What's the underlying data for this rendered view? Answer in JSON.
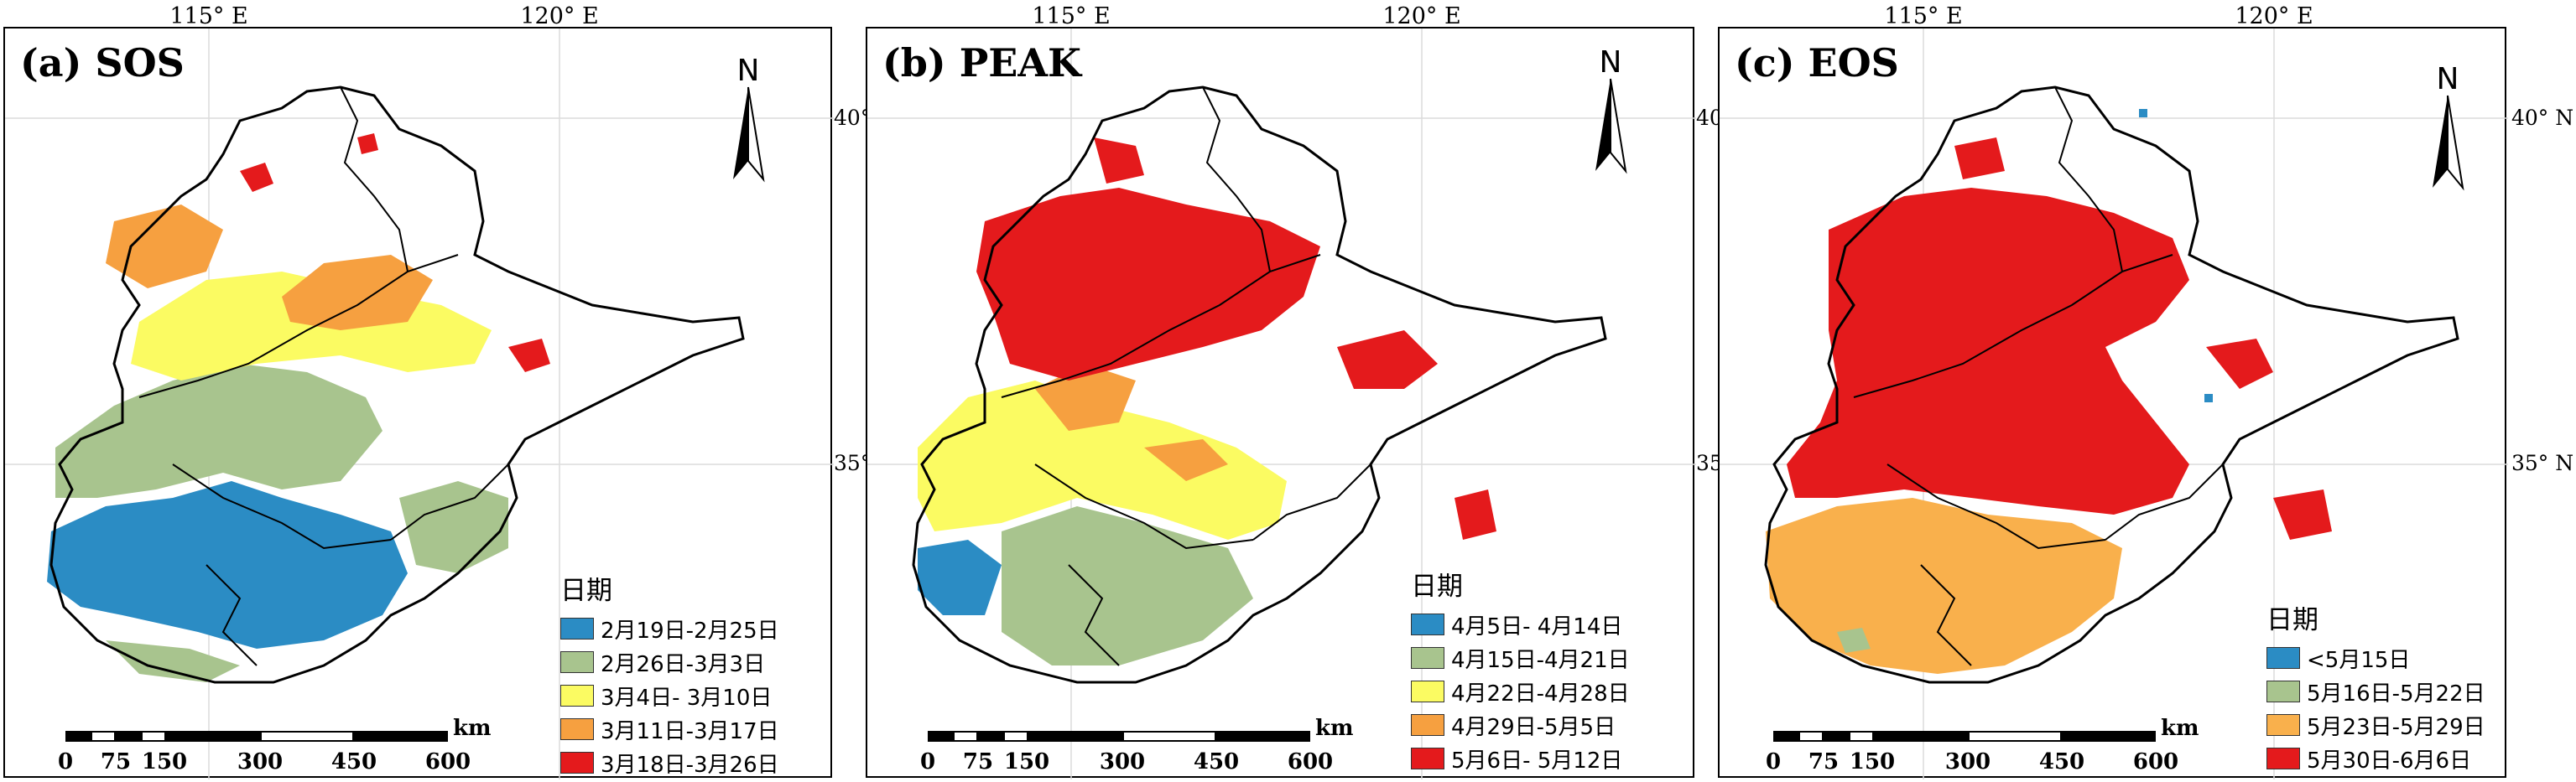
{
  "colors": {
    "blue": "#2b8cc4",
    "green": "#a8c48e",
    "yellow": "#fbfb62",
    "orange": "#f6a040",
    "red": "#e41a1c",
    "light_orange": "#f9b04c",
    "white": "#ffffff"
  },
  "axes": {
    "lon_labels": [
      "115° E",
      "120° E"
    ],
    "lat_labels": [
      "40° N",
      "35° N"
    ]
  },
  "north_label": "N",
  "scale_bar": {
    "unit": "km",
    "ticks": [
      "0",
      "75",
      "150",
      "300",
      "450",
      "600"
    ]
  },
  "panels": [
    {
      "title": "(a) SOS",
      "legend_title": "日期",
      "legend": [
        {
          "label": "2月19日-2月25日",
          "color": "#2b8cc4"
        },
        {
          "label": "2月26日-3月3日",
          "color": "#a8c48e"
        },
        {
          "label": "3月4日- 3月10日",
          "color": "#fbfb62"
        },
        {
          "label": "3月11日-3月17日",
          "color": "#f6a040"
        },
        {
          "label": "3月18日-3月26日",
          "color": "#e41a1c"
        }
      ]
    },
    {
      "title": "(b) PEAK",
      "legend_title": "日期",
      "legend": [
        {
          "label": "4月5日- 4月14日",
          "color": "#2b8cc4"
        },
        {
          "label": "4月15日-4月21日",
          "color": "#a8c48e"
        },
        {
          "label": "4月22日-4月28日",
          "color": "#fbfb62"
        },
        {
          "label": "4月29日-5月5日",
          "color": "#f6a040"
        },
        {
          "label": "5月6日- 5月12日",
          "color": "#e41a1c"
        }
      ]
    },
    {
      "title": "(c) EOS",
      "legend_title": "日期",
      "legend": [
        {
          "label": "<5月15日",
          "color": "#2b8cc4"
        },
        {
          "label": "5月16日-5月22日",
          "color": "#a8c48e"
        },
        {
          "label": "5月23日-5月29日",
          "color": "#f9b04c"
        },
        {
          "label": "5月30日-6月6日",
          "color": "#e41a1c"
        }
      ]
    }
  ]
}
